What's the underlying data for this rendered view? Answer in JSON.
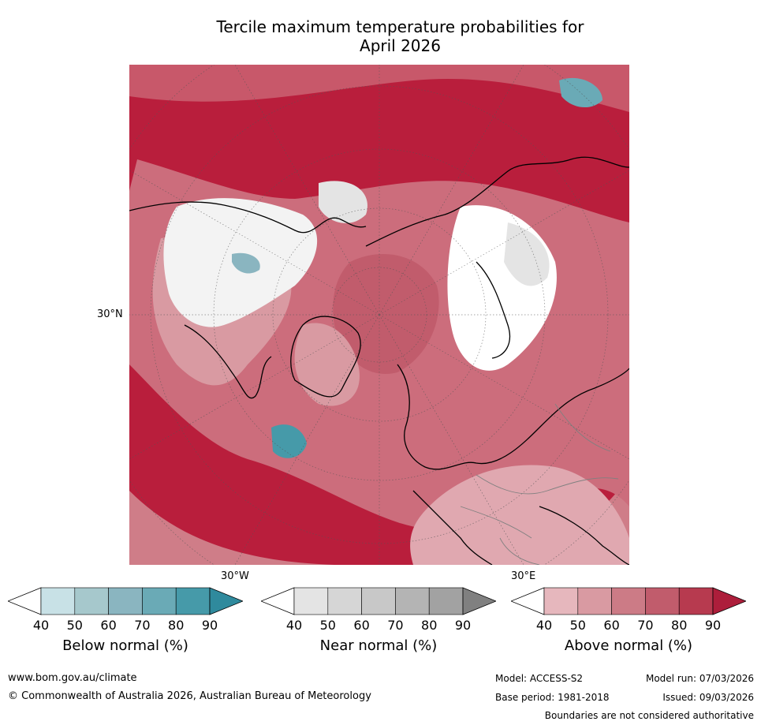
{
  "title": {
    "line1": "Tercile maximum temperature probabilities for",
    "line2": "April 2026"
  },
  "map": {
    "projection": "polar stereographic, north pole",
    "lat_label": "30°N",
    "lon_labels": [
      "30°W",
      "30°E"
    ]
  },
  "colorbars": [
    {
      "id": "below",
      "label": "Below normal (%)",
      "ticks": [
        "40",
        "50",
        "60",
        "70",
        "80",
        "90"
      ],
      "colors": [
        "#ffffff",
        "#c8e1e6",
        "#a6c8cc",
        "#8ab5c0",
        "#6aaab6",
        "#469aa9",
        "#2f8a9d"
      ]
    },
    {
      "id": "near",
      "label": "Near normal (%)",
      "ticks": [
        "40",
        "50",
        "60",
        "70",
        "80",
        "90"
      ],
      "colors": [
        "#ffffff",
        "#e4e4e4",
        "#d6d6d6",
        "#c8c8c8",
        "#b4b4b4",
        "#a2a2a2",
        "#808080"
      ]
    },
    {
      "id": "above",
      "label": "Above normal (%)",
      "ticks": [
        "40",
        "50",
        "60",
        "70",
        "80",
        "90"
      ],
      "colors": [
        "#ffffff",
        "#e6b7bd",
        "#d99aa2",
        "#cc7b86",
        "#c15c6c",
        "#b73a4f",
        "#ad1e3b"
      ]
    }
  ],
  "footer": {
    "url": "www.bom.gov.au/climate",
    "copyright": "© Commonwealth of Australia 2026, Australian Bureau of Meteorology",
    "model": "Model: ACCESS-S2",
    "base_period": "Base period: 1981-2018",
    "model_run": "Model run: 07/03/2026",
    "issued": "Issued: 09/03/2026",
    "disclaimer": "Boundaries are not considered authoritative"
  }
}
